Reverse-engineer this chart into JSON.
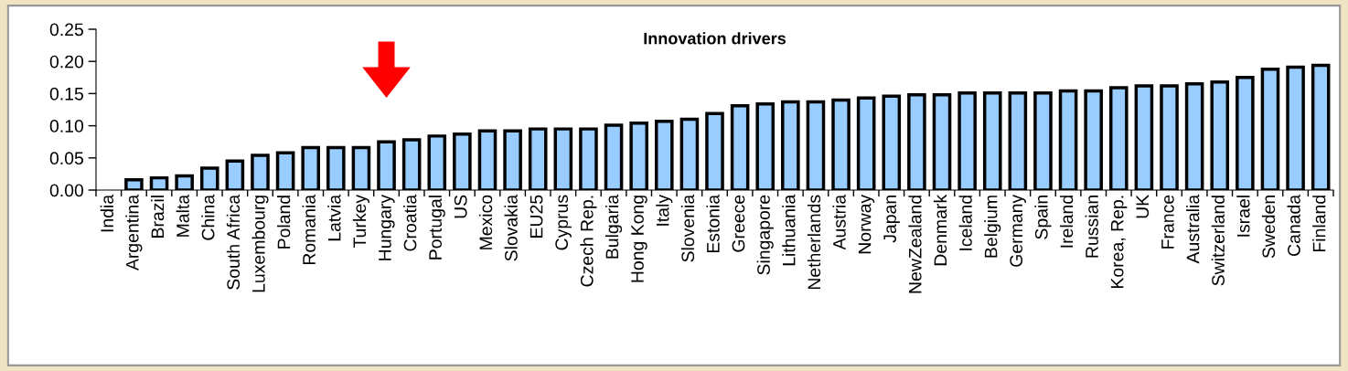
{
  "chart_data": {
    "type": "bar",
    "title": "Innovation drivers",
    "categories": [
      "India",
      "Argentina",
      "Brazil",
      "Malta",
      "China",
      "South Africa",
      "Luxembourg",
      "Poland",
      "Romania",
      "Latvia",
      "Turkey",
      "Hungary",
      "Croatia",
      "Portugal",
      "US",
      "Mexico",
      "Slovakia",
      "EU25",
      "Cyprus",
      "Czech Rep.",
      "Bulgaria",
      "Hong Kong",
      "Italy",
      "Slovenia",
      "Estonia",
      "Greece",
      "Singapore",
      "Lithuania",
      "Netherlands",
      "Austria",
      "Norway",
      "Japan",
      "NewZealand",
      "Denmark",
      "Iceland",
      "Belgium",
      "Germany",
      "Spain",
      "Ireland",
      "Russian",
      "Korea, Rep.",
      "UK",
      "France",
      "Australia",
      "Switzerland",
      "Israel",
      "Sweden",
      "Canada",
      "Finland"
    ],
    "values": [
      null,
      0.016,
      0.019,
      0.022,
      0.034,
      0.045,
      0.054,
      0.058,
      0.066,
      0.066,
      0.066,
      0.075,
      0.078,
      0.084,
      0.087,
      0.092,
      0.092,
      0.095,
      0.095,
      0.095,
      0.101,
      0.104,
      0.107,
      0.11,
      0.119,
      0.131,
      0.134,
      0.137,
      0.137,
      0.14,
      0.143,
      0.146,
      0.148,
      0.148,
      0.151,
      0.151,
      0.151,
      0.151,
      0.154,
      0.154,
      0.159,
      0.162,
      0.162,
      0.165,
      0.168,
      0.175,
      0.188,
      0.191,
      0.194
    ],
    "color": "#99ccff",
    "ylim": [
      0,
      0.25
    ],
    "yticks": [
      {
        "value": 0,
        "label": "0.00"
      },
      {
        "value": 0.05,
        "label": "0.05"
      },
      {
        "value": 0.1,
        "label": "0.10"
      },
      {
        "value": 0.15,
        "label": "0.15"
      },
      {
        "value": 0.2,
        "label": "0.20"
      },
      {
        "value": 0.25,
        "label": "0.25"
      }
    ],
    "grid": false,
    "legend": false
  }
}
